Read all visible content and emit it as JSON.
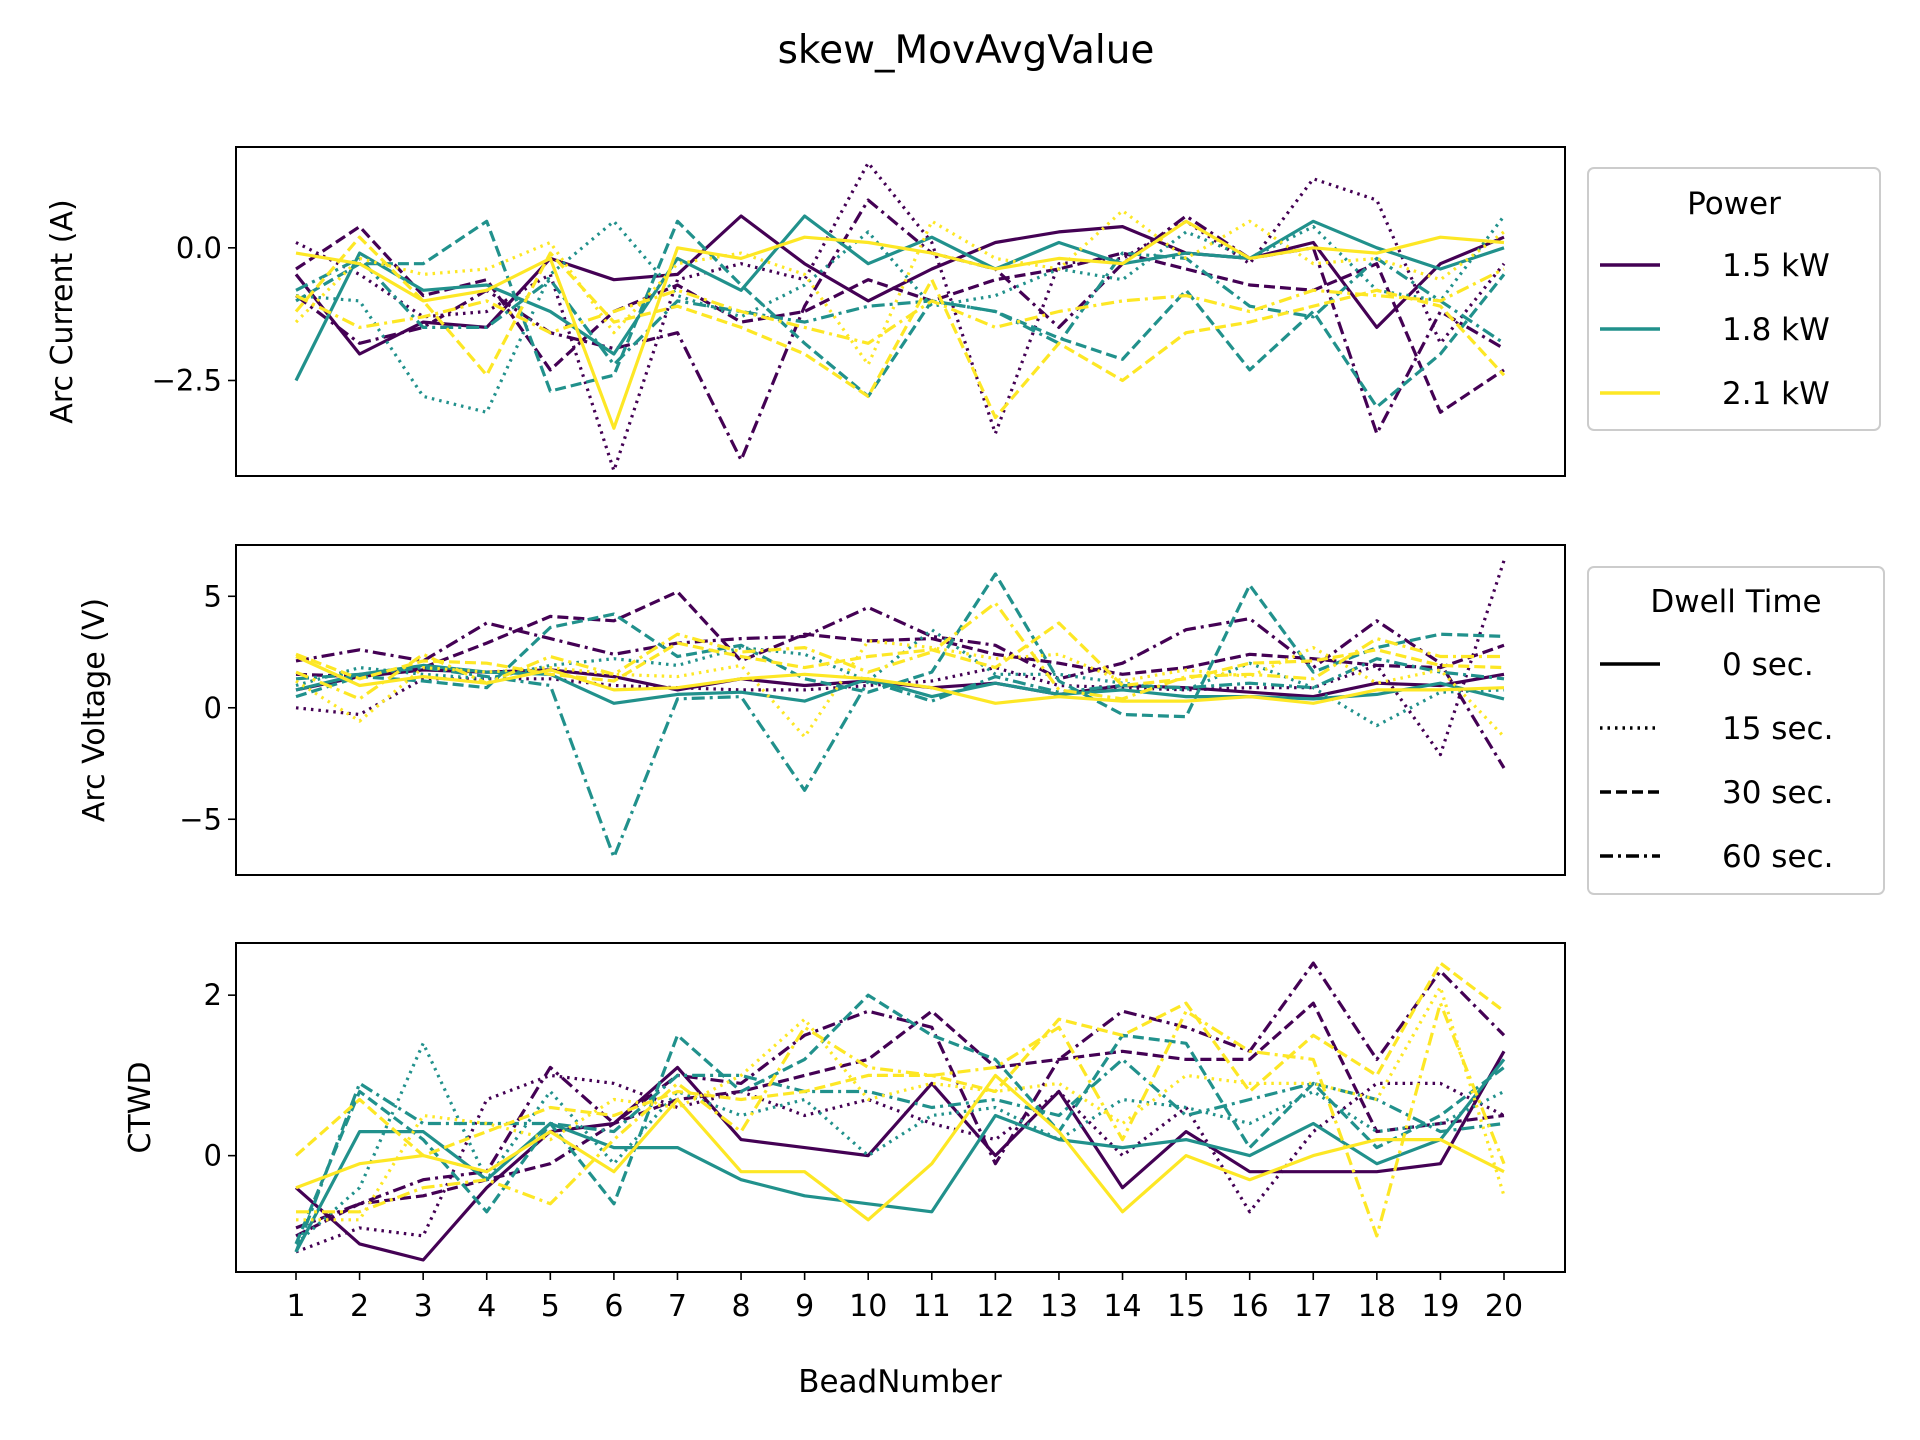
{
  "figure": {
    "title": "skew_MovAvgValue",
    "xlabel": "BeadNumber",
    "x_ticks": [
      "1",
      "2",
      "3",
      "4",
      "5",
      "6",
      "7",
      "8",
      "9",
      "10",
      "11",
      "12",
      "13",
      "14",
      "15",
      "16",
      "17",
      "18",
      "19",
      "20"
    ]
  },
  "colors": {
    "1.5 kW": "#440154",
    "1.8 kW": "#21918c",
    "2.1 kW": "#fde725"
  },
  "legend_power": {
    "title": "Power",
    "placement": "right of top panel",
    "entries": [
      {
        "label": "1.5 kW",
        "color": "#440154"
      },
      {
        "label": "1.8 kW",
        "color": "#21918c"
      },
      {
        "label": "2.1 kW",
        "color": "#fde725"
      }
    ]
  },
  "legend_dwell": {
    "title": "Dwell Time",
    "placement": "right of middle panel",
    "entries": [
      {
        "label": "0 sec.",
        "dash": "solid"
      },
      {
        "label": "15 sec.",
        "dash": "dotted"
      },
      {
        "label": "30 sec.",
        "dash": "dashed"
      },
      {
        "label": "60 sec.",
        "dash": "dashdot"
      }
    ]
  },
  "chart_data": [
    {
      "type": "line",
      "ylabel": "Arc Current (A)",
      "ylim": [
        -4.3,
        1.9
      ],
      "yticks": [
        0.0,
        -2.5
      ],
      "ytick_labels": [
        "0.0",
        "−2.5"
      ],
      "x": [
        1,
        2,
        3,
        4,
        5,
        6,
        7,
        8,
        9,
        10,
        11,
        12,
        13,
        14,
        15,
        16,
        17,
        18,
        19,
        20
      ],
      "series": [
        {
          "power": "1.5 kW",
          "dwell": "0 sec.",
          "values": [
            -0.5,
            -2.0,
            -1.4,
            -1.5,
            -0.2,
            -0.6,
            -0.5,
            0.6,
            -0.3,
            -1.0,
            -0.4,
            0.1,
            0.3,
            0.4,
            -0.1,
            -0.2,
            0.1,
            -1.5,
            -0.3,
            0.2
          ]
        },
        {
          "power": "1.5 kW",
          "dwell": "15 sec.",
          "values": [
            0.1,
            -0.5,
            -1.3,
            -1.2,
            -0.5,
            -4.2,
            -0.6,
            -0.3,
            -0.6,
            1.6,
            0.1,
            -3.5,
            -0.3,
            -0.2,
            0.5,
            -0.3,
            1.3,
            0.9,
            -1.8,
            -0.3
          ]
        },
        {
          "power": "1.5 kW",
          "dwell": "30 sec.",
          "values": [
            -0.4,
            0.4,
            -0.9,
            -0.6,
            -2.3,
            -1.2,
            -0.7,
            -1.4,
            -1.2,
            -0.6,
            -1.0,
            -0.6,
            -0.4,
            -0.1,
            -0.4,
            -0.7,
            -0.8,
            -0.3,
            -3.1,
            -2.3
          ]
        },
        {
          "power": "1.5 kW",
          "dwell": "60 sec.",
          "values": [
            -0.9,
            -1.8,
            -1.5,
            -0.8,
            -1.6,
            -1.9,
            -1.6,
            -4.0,
            -1.1,
            0.9,
            -0.1,
            -0.4,
            -1.5,
            -0.3,
            0.6,
            -0.2,
            0.0,
            -3.5,
            -1.2,
            -1.9
          ]
        },
        {
          "power": "1.8 kW",
          "dwell": "0 sec.",
          "values": [
            -2.5,
            -0.1,
            -0.8,
            -0.7,
            -1.2,
            -2.0,
            -0.2,
            -0.8,
            0.6,
            -0.3,
            0.2,
            -0.4,
            0.1,
            -0.3,
            -0.1,
            -0.2,
            0.5,
            0.0,
            -0.4,
            0.0
          ]
        },
        {
          "power": "1.8 kW",
          "dwell": "15 sec.",
          "values": [
            -0.9,
            -1.0,
            -2.8,
            -3.1,
            -0.5,
            0.5,
            -0.9,
            -1.3,
            -0.7,
            0.3,
            -1.1,
            -0.9,
            -0.4,
            -0.6,
            0.3,
            -0.2,
            0.4,
            -0.8,
            -1.0,
            0.6
          ]
        },
        {
          "power": "1.8 kW",
          "dwell": "30 sec.",
          "values": [
            -1.0,
            -0.3,
            -0.3,
            0.5,
            -2.7,
            -2.4,
            0.5,
            -0.7,
            -1.8,
            -2.8,
            -1.0,
            -1.2,
            -1.7,
            -2.1,
            -0.8,
            -2.3,
            -1.2,
            -3.0,
            -2.0,
            -0.5
          ]
        },
        {
          "power": "1.8 kW",
          "dwell": "60 sec.",
          "values": [
            -0.8,
            -0.2,
            -1.5,
            -1.5,
            -0.6,
            -2.2,
            -1.0,
            -1.2,
            -1.4,
            -1.1,
            -1.0,
            -1.2,
            -1.8,
            -0.1,
            -0.2,
            -1.1,
            -1.3,
            -0.2,
            -1.0,
            -1.8
          ]
        },
        {
          "power": "2.1 kW",
          "dwell": "0 sec.",
          "values": [
            -0.1,
            -0.3,
            -1.0,
            -0.8,
            -0.2,
            -3.4,
            0.0,
            -0.2,
            0.2,
            0.1,
            -0.1,
            -0.4,
            -0.2,
            -0.3,
            0.5,
            -0.2,
            0.0,
            -0.1,
            0.2,
            0.1
          ]
        },
        {
          "power": "2.1 kW",
          "dwell": "15 sec.",
          "values": [
            -1.4,
            -0.2,
            -0.5,
            -0.4,
            0.1,
            -1.6,
            -0.3,
            -0.1,
            -0.5,
            -2.2,
            0.5,
            -0.2,
            -0.4,
            0.7,
            -0.2,
            0.5,
            -0.3,
            -0.2,
            -0.6,
            0.3
          ]
        },
        {
          "power": "2.1 kW",
          "dwell": "30 sec.",
          "values": [
            -1.2,
            0.2,
            -1.0,
            -2.4,
            -0.1,
            -1.4,
            -1.1,
            -1.5,
            -2.0,
            -2.8,
            -0.6,
            -3.2,
            -1.8,
            -2.5,
            -1.6,
            -1.4,
            -1.1,
            -0.8,
            -1.1,
            -2.4
          ]
        },
        {
          "power": "2.1 kW",
          "dwell": "60 sec.",
          "values": [
            -0.9,
            -1.5,
            -1.3,
            -1.0,
            -1.6,
            -1.2,
            -0.8,
            -1.2,
            -1.5,
            -1.8,
            -1.0,
            -1.5,
            -1.2,
            -1.0,
            -0.9,
            -1.2,
            -0.8,
            -0.9,
            -1.0,
            -0.4
          ]
        }
      ]
    },
    {
      "type": "line",
      "ylabel": "Arc Voltage (V)",
      "ylim": [
        -7.5,
        7.3
      ],
      "yticks": [
        5,
        0,
        -5
      ],
      "ytick_labels": [
        "5",
        "0",
        "−5"
      ],
      "x": [
        1,
        2,
        3,
        4,
        5,
        6,
        7,
        8,
        9,
        10,
        11,
        12,
        13,
        14,
        15,
        16,
        17,
        18,
        19,
        20
      ],
      "series": [
        {
          "power": "1.5 kW",
          "dwell": "0 sec.",
          "values": [
            0.8,
            1.4,
            1.7,
            1.6,
            1.7,
            1.4,
            0.8,
            1.3,
            1.0,
            1.2,
            0.9,
            1.1,
            0.6,
            1.0,
            0.9,
            0.7,
            0.5,
            1.1,
            1.0,
            1.5
          ]
        },
        {
          "power": "1.5 kW",
          "dwell": "15 sec.",
          "values": [
            0.0,
            -0.3,
            1.3,
            1.3,
            1.3,
            1.0,
            0.9,
            0.8,
            0.8,
            1.0,
            1.2,
            1.8,
            1.0,
            0.9,
            0.8,
            0.9,
            0.9,
            1.9,
            -2.1,
            6.6
          ]
        },
        {
          "power": "1.5 kW",
          "dwell": "30 sec.",
          "values": [
            1.5,
            1.4,
            1.8,
            2.9,
            4.1,
            3.9,
            5.2,
            2.1,
            3.3,
            3.0,
            3.1,
            2.4,
            2.0,
            1.5,
            1.8,
            2.4,
            2.2,
            1.9,
            1.8,
            2.8
          ]
        },
        {
          "power": "1.5 kW",
          "dwell": "60 sec.",
          "values": [
            2.1,
            2.6,
            2.1,
            3.8,
            3.1,
            2.4,
            2.9,
            3.1,
            3.2,
            4.5,
            3.2,
            2.8,
            1.3,
            2.0,
            3.5,
            4.0,
            1.8,
            3.9,
            2.0,
            -2.7
          ]
        },
        {
          "power": "1.8 kW",
          "dwell": "0 sec.",
          "values": [
            0.8,
            1.5,
            1.9,
            1.6,
            1.5,
            0.2,
            0.6,
            0.7,
            0.3,
            1.3,
            0.5,
            1.1,
            0.6,
            0.8,
            0.5,
            0.5,
            0.4,
            0.6,
            1.1,
            0.4
          ]
        },
        {
          "power": "1.8 kW",
          "dwell": "15 sec.",
          "values": [
            1.0,
            1.8,
            1.5,
            1.3,
            1.9,
            2.2,
            1.9,
            2.7,
            2.4,
            1.2,
            3.5,
            1.5,
            1.5,
            1.1,
            0.8,
            2.0,
            0.9,
            -0.8,
            0.7,
            0.8
          ]
        },
        {
          "power": "1.8 kW",
          "dwell": "30 sec.",
          "values": [
            0.5,
            1.4,
            1.2,
            0.9,
            3.6,
            4.2,
            2.3,
            2.8,
            1.3,
            0.7,
            1.6,
            6.0,
            1.2,
            -0.3,
            -0.4,
            5.5,
            1.6,
            2.7,
            3.3,
            3.2
          ]
        },
        {
          "power": "1.8 kW",
          "dwell": "60 sec.",
          "values": [
            1.3,
            1.5,
            1.8,
            1.4,
            1.0,
            -6.7,
            0.4,
            0.5,
            -3.7,
            1.2,
            0.3,
            1.4,
            0.7,
            1.0,
            0.9,
            1.1,
            0.9,
            2.2,
            1.6,
            1.3
          ]
        },
        {
          "power": "2.1 kW",
          "dwell": "0 sec.",
          "values": [
            2.3,
            1.0,
            1.4,
            1.1,
            1.7,
            0.8,
            0.9,
            1.3,
            1.5,
            1.3,
            0.9,
            0.2,
            0.5,
            0.3,
            0.3,
            0.5,
            0.2,
            0.8,
            0.8,
            0.9
          ]
        },
        {
          "power": "2.1 kW",
          "dwell": "15 sec.",
          "values": [
            1.2,
            -0.6,
            1.8,
            1.6,
            1.8,
            1.5,
            1.4,
            1.9,
            -1.3,
            3.0,
            2.7,
            2.2,
            2.4,
            1.2,
            1.7,
            1.4,
            2.7,
            1.1,
            1.7,
            -1.3
          ]
        },
        {
          "power": "2.1 kW",
          "dwell": "30 sec.",
          "values": [
            2.4,
            1.3,
            2.1,
            2.0,
            1.5,
            1.2,
            2.9,
            2.3,
            1.8,
            2.3,
            2.6,
            1.8,
            3.8,
            1.0,
            1.3,
            2.0,
            2.1,
            2.6,
            1.9,
            1.8
          ]
        },
        {
          "power": "2.1 kW",
          "dwell": "60 sec.",
          "values": [
            1.6,
            0.4,
            2.4,
            1.1,
            2.3,
            1.5,
            3.3,
            2.5,
            2.7,
            1.6,
            2.5,
            4.7,
            0.8,
            0.4,
            1.4,
            1.5,
            1.3,
            3.1,
            2.3,
            2.3
          ]
        }
      ]
    },
    {
      "type": "line",
      "ylabel": "CTWD",
      "ylim": [
        -1.45,
        2.65
      ],
      "yticks": [
        2,
        0
      ],
      "ytick_labels": [
        "2",
        "0"
      ],
      "x": [
        1,
        2,
        3,
        4,
        5,
        6,
        7,
        8,
        9,
        10,
        11,
        12,
        13,
        14,
        15,
        16,
        17,
        18,
        19,
        20
      ],
      "series": [
        {
          "power": "1.5 kW",
          "dwell": "0 sec.",
          "values": [
            -0.4,
            -1.1,
            -1.3,
            -0.4,
            0.3,
            0.4,
            1.1,
            0.2,
            0.1,
            0.0,
            0.9,
            0.0,
            0.8,
            -0.4,
            0.3,
            -0.2,
            -0.2,
            -0.2,
            -0.1,
            1.3
          ]
        },
        {
          "power": "1.5 kW",
          "dwell": "15 sec.",
          "values": [
            -1.2,
            -0.9,
            -1.0,
            0.7,
            1.0,
            0.9,
            0.6,
            0.8,
            0.5,
            0.7,
            0.4,
            0.2,
            0.8,
            0.0,
            0.6,
            -0.7,
            0.3,
            0.9,
            0.9,
            0.5
          ]
        },
        {
          "power": "1.5 kW",
          "dwell": "30 sec.",
          "values": [
            -1.0,
            -0.6,
            -0.5,
            -0.3,
            -0.1,
            0.4,
            0.7,
            0.8,
            1.0,
            1.2,
            1.8,
            1.1,
            1.2,
            1.3,
            1.2,
            1.2,
            1.9,
            0.3,
            0.4,
            0.5
          ]
        },
        {
          "power": "1.5 kW",
          "dwell": "60 sec.",
          "values": [
            -0.9,
            -0.6,
            -0.3,
            -0.2,
            1.1,
            0.4,
            1.0,
            0.9,
            1.5,
            1.8,
            1.6,
            -0.1,
            1.2,
            1.8,
            1.6,
            1.3,
            2.4,
            1.2,
            2.3,
            1.5
          ]
        },
        {
          "power": "1.8 kW",
          "dwell": "0 sec.",
          "values": [
            -1.2,
            0.3,
            0.3,
            -0.3,
            0.4,
            0.1,
            0.1,
            -0.3,
            -0.5,
            -0.6,
            -0.7,
            0.5,
            0.2,
            0.1,
            0.2,
            0.0,
            0.4,
            -0.1,
            0.2,
            1.2
          ]
        },
        {
          "power": "1.8 kW",
          "dwell": "15 sec.",
          "values": [
            -1.1,
            -0.4,
            1.4,
            -0.3,
            0.8,
            -0.1,
            0.8,
            0.5,
            0.7,
            0.0,
            0.5,
            0.6,
            0.2,
            0.7,
            0.6,
            0.4,
            0.8,
            0.3,
            0.4,
            0.8
          ]
        },
        {
          "power": "1.8 kW",
          "dwell": "30 sec.",
          "values": [
            -1.1,
            0.8,
            0.2,
            -0.7,
            0.4,
            -0.6,
            1.5,
            0.8,
            1.2,
            2.0,
            1.5,
            1.2,
            0.3,
            1.5,
            1.4,
            0.1,
            0.9,
            0.1,
            0.5,
            1.1
          ]
        },
        {
          "power": "1.8 kW",
          "dwell": "60 sec.",
          "values": [
            -1.2,
            0.9,
            0.4,
            0.4,
            0.4,
            0.3,
            1.0,
            1.0,
            0.8,
            0.8,
            0.6,
            0.7,
            0.5,
            1.2,
            0.5,
            0.7,
            0.9,
            0.7,
            0.3,
            0.4
          ]
        },
        {
          "power": "2.1 kW",
          "dwell": "0 sec.",
          "values": [
            -0.4,
            -0.1,
            0.0,
            -0.2,
            0.3,
            -0.2,
            0.7,
            -0.2,
            -0.2,
            -0.8,
            -0.1,
            1.0,
            0.3,
            -0.7,
            0.0,
            -0.3,
            0.0,
            0.2,
            0.2,
            -0.2
          ]
        },
        {
          "power": "2.1 kW",
          "dwell": "15 sec.",
          "values": [
            -0.8,
            -0.8,
            0.5,
            0.4,
            0.2,
            0.7,
            0.6,
            1.0,
            1.7,
            0.7,
            0.9,
            0.8,
            0.9,
            0.4,
            1.0,
            0.9,
            0.9,
            0.7,
            2.1,
            -0.5
          ]
        },
        {
          "power": "2.1 kW",
          "dwell": "30 sec.",
          "values": [
            0.0,
            0.7,
            0.0,
            0.3,
            0.6,
            0.5,
            0.8,
            0.7,
            0.8,
            1.0,
            1.0,
            0.8,
            1.7,
            1.5,
            1.9,
            0.8,
            1.5,
            1.0,
            2.4,
            1.8
          ]
        },
        {
          "power": "2.1 kW",
          "dwell": "60 sec.",
          "values": [
            -0.7,
            -0.7,
            -0.4,
            -0.3,
            -0.6,
            0.2,
            0.9,
            0.3,
            1.6,
            1.1,
            1.0,
            1.1,
            1.6,
            0.2,
            1.8,
            1.3,
            1.2,
            -1.0,
            1.9,
            -0.1
          ]
        }
      ]
    }
  ]
}
